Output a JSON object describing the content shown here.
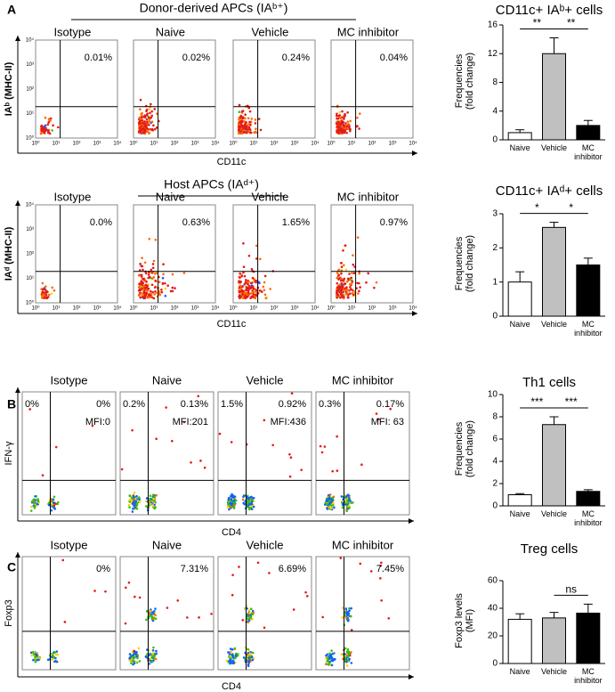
{
  "flow_sections": [
    {
      "panel": "A",
      "header": "Donor-derived APCs (IAᵇ⁺)",
      "y_label": "IAᵇ (MHC-II)",
      "x_label": "CD11c",
      "ticks": [
        "10⁰",
        "10¹",
        "10²",
        "10³",
        "10⁴"
      ],
      "plots": [
        {
          "name": "Isotype",
          "pct": "0.01%"
        },
        {
          "name": "Naive",
          "pct": "0.02%"
        },
        {
          "name": "Vehicle",
          "pct": "0.24%"
        },
        {
          "name": "MC inhibitor",
          "pct": "0.04%"
        }
      ]
    },
    {
      "header": "Host APCs (IAᵈ⁺)",
      "y_label": "IAᵈ (MHC-II)",
      "x_label": "CD11c",
      "ticks": [
        "10⁰",
        "10¹",
        "10²",
        "10³",
        "10⁴"
      ],
      "plots": [
        {
          "name": "Isotype",
          "pct": "0.0%"
        },
        {
          "name": "Naive",
          "pct": "0.63%"
        },
        {
          "name": "Vehicle",
          "pct": "1.65%"
        },
        {
          "name": "MC inhibitor",
          "pct": "0.97%"
        }
      ]
    },
    {
      "panel": "B",
      "y_label": "IFN-γ",
      "x_label": "CD4",
      "plots": [
        {
          "name": "Isotype",
          "pct_left": "0%",
          "pct": "0%",
          "mfi": "MFI:0"
        },
        {
          "name": "Naive",
          "pct_left": "0.2%",
          "pct": "0.13%",
          "mfi": "MFI:201"
        },
        {
          "name": "Vehicle",
          "pct_left": "1.5%",
          "pct": "0.92%",
          "mfi": "MFI:436"
        },
        {
          "name": "MC inhibitor",
          "pct_left": "0.3%",
          "pct": "0.17%",
          "mfi": "MFI: 63"
        }
      ]
    },
    {
      "panel": "C",
      "y_label": "Foxp3",
      "x_label": "CD4",
      "plots": [
        {
          "name": "Isotype",
          "pct": "0%"
        },
        {
          "name": "Naive",
          "pct": "7.31%"
        },
        {
          "name": "Vehicle",
          "pct": "6.69%"
        },
        {
          "name": "MC inhibitor",
          "pct": "7.45%"
        }
      ]
    }
  ],
  "chart_data": [
    {
      "type": "bar",
      "title": "CD11c+ IAᵇ+ cells",
      "y_label": "Frequencies (fold change)",
      "categories": [
        "Naive",
        "Vehicle",
        "MC inhibitor"
      ],
      "values": [
        1,
        12,
        2
      ],
      "errors": [
        0.4,
        2.2,
        0.7
      ],
      "colors": [
        "#ffffff",
        "#c0c0c0",
        "#000000"
      ],
      "ylim": [
        0,
        16
      ],
      "yticks": [
        0,
        4,
        8,
        12,
        16
      ],
      "annotations": [
        "**",
        "**"
      ]
    },
    {
      "type": "bar",
      "title": "CD11c+ IAᵈ+ cells",
      "y_label": "Frequencies (fold change)",
      "categories": [
        "Naive",
        "Vehicle",
        "MC inhibitor"
      ],
      "values": [
        1,
        2.6,
        1.5
      ],
      "errors": [
        0.3,
        0.15,
        0.2
      ],
      "colors": [
        "#ffffff",
        "#c0c0c0",
        "#000000"
      ],
      "ylim": [
        0,
        3
      ],
      "yticks": [
        0,
        1,
        2,
        3
      ],
      "annotations": [
        "*",
        "*"
      ]
    },
    {
      "type": "bar",
      "title": "Th1 cells",
      "y_label": "Frequencies (fold change)",
      "categories": [
        "Naive",
        "Vehicle",
        "MC inhibitor"
      ],
      "values": [
        1,
        7.3,
        1.3
      ],
      "errors": [
        0.1,
        0.7,
        0.15
      ],
      "colors": [
        "#ffffff",
        "#c0c0c0",
        "#000000"
      ],
      "ylim": [
        0,
        10
      ],
      "yticks": [
        0,
        2,
        4,
        6,
        8,
        10
      ],
      "annotations": [
        "***",
        "***"
      ]
    },
    {
      "type": "bar",
      "title": "Treg cells",
      "y_label": "Foxp3 levels (MFI)",
      "categories": [
        "Naive",
        "Vehicle",
        "MC inhibitor"
      ],
      "values": [
        32,
        33,
        36.5
      ],
      "errors": [
        4,
        4,
        6.5
      ],
      "colors": [
        "#ffffff",
        "#c0c0c0",
        "#000000"
      ],
      "ylim": [
        0,
        60
      ],
      "yticks": [
        0,
        20,
        40,
        60
      ],
      "annotations": [
        "ns"
      ]
    }
  ]
}
